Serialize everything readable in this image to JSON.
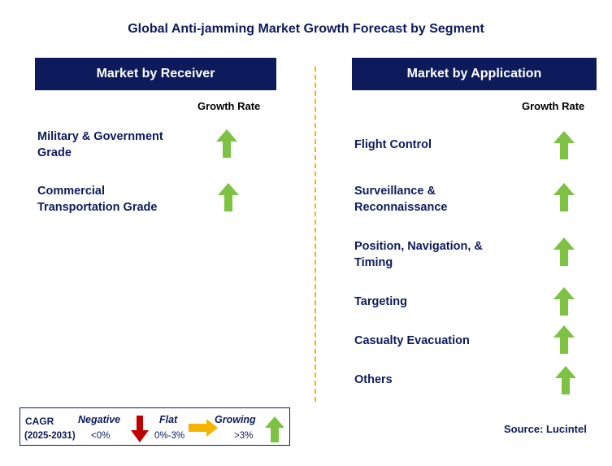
{
  "title": "Global Anti-jamming Market Growth Forecast by Segment",
  "left_panel": {
    "header": "Market by Receiver",
    "growth_label": "Growth Rate",
    "items": [
      {
        "line1": "Military & Government",
        "line2": "Grade",
        "trend": "up"
      },
      {
        "line1": "Commercial",
        "line2": "Transportation Grade",
        "trend": "up"
      }
    ]
  },
  "right_panel": {
    "header": "Market by Application",
    "growth_label": "Growth Rate",
    "items": [
      {
        "line1": "Flight Control",
        "line2": "",
        "trend": "up"
      },
      {
        "line1": "Surveillance &",
        "line2": "Reconnaissance",
        "trend": "up"
      },
      {
        "line1": "Position, Navigation, &",
        "line2": "Timing",
        "trend": "up"
      },
      {
        "line1": "Targeting",
        "line2": "",
        "trend": "up"
      },
      {
        "line1": "Casualty Evacuation",
        "line2": "",
        "trend": "up"
      },
      {
        "line1": "Others",
        "line2": "",
        "trend": "up"
      }
    ]
  },
  "legend": {
    "cagr": "CAGR",
    "period": "(2025-2031)",
    "negative_label": "Negative",
    "negative_range": "<0%",
    "flat_label": "Flat",
    "flat_range": "0%-3%",
    "growing_label": "Growing",
    "growing_range": ">3%"
  },
  "source": "Source: Lucintel",
  "colors": {
    "navy": "#0d1b5c",
    "up_arrow": "#7dc242",
    "down_arrow": "#c00000",
    "flat_arrow": "#f5b400",
    "divider": "#f5b400"
  }
}
